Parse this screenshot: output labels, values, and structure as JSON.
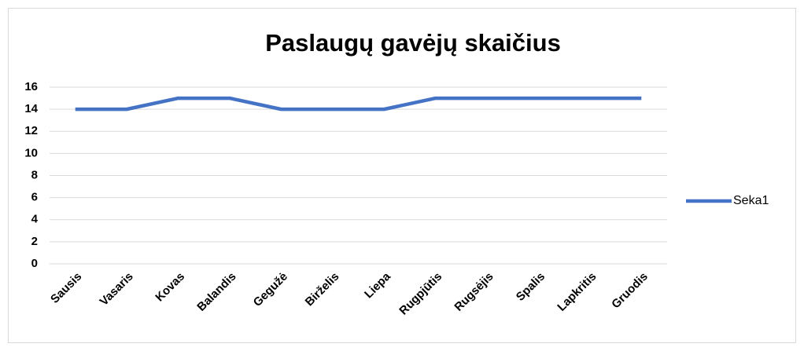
{
  "chart_data": {
    "type": "line",
    "title": "Paslaugų gavėjų skaičius",
    "categories": [
      "Sausis",
      "Vasaris",
      "Kovas",
      "Balandis",
      "Gegužė",
      "Birželis",
      "Liepa",
      "Rugpjūtis",
      "Rugsėjis",
      "Spalis",
      "Lapkritis",
      "Gruodis"
    ],
    "series": [
      {
        "name": "Seka1",
        "color": "#4472c4",
        "values": [
          14,
          14,
          15,
          15,
          14,
          14,
          14,
          15,
          15,
          15,
          15,
          15
        ]
      }
    ],
    "ylim": [
      0,
      16
    ],
    "yticks": [
      0,
      2,
      4,
      6,
      8,
      10,
      12,
      14,
      16
    ],
    "grid": true,
    "legend": "right"
  }
}
